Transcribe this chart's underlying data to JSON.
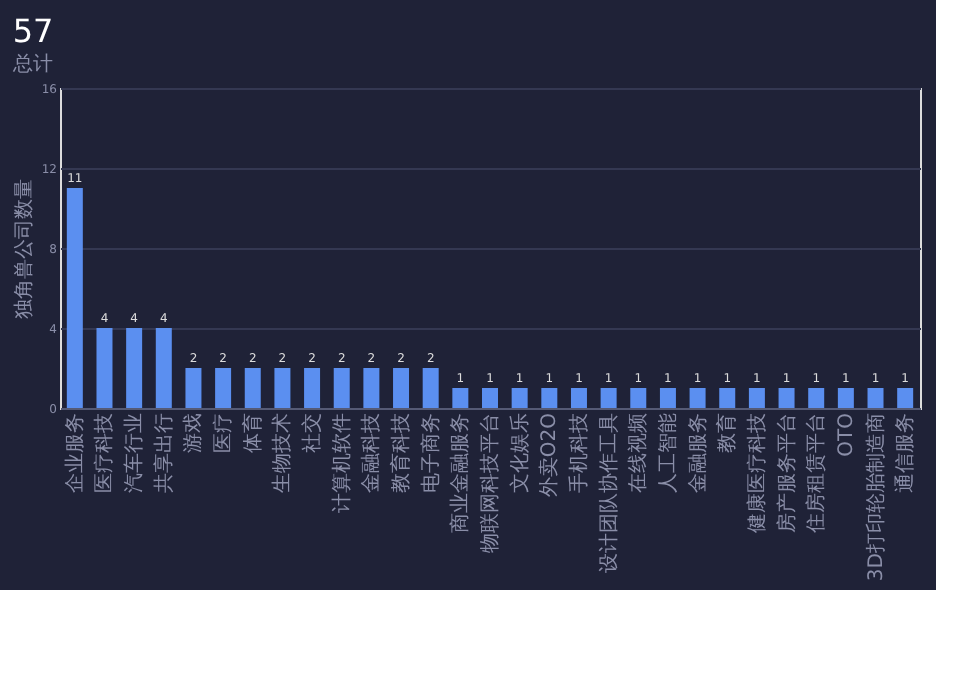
{
  "chart_data": {
    "type": "bar",
    "title": "57",
    "subtitle": "总计",
    "ylabel": "独角兽公司数量",
    "categories": [
      "企业服务",
      "医疗科技",
      "汽车行业",
      "共享出行",
      "游戏",
      "医疗",
      "体育",
      "生物技术",
      "社交",
      "计算机软件",
      "金融科技",
      "教育科技",
      "电子商务",
      "商业金融服务",
      "物联网科技平台",
      "文化娱乐",
      "外卖O2O",
      "手机科技",
      "设计团队协作工具",
      "在线视频",
      "人工智能",
      "金融服务",
      "教育",
      "健康医疗科技",
      "房产服务平台",
      "住房租赁平台",
      "OTO",
      "3D打印轮胎制造商",
      "通信服务"
    ],
    "values": [
      11,
      4,
      4,
      4,
      2,
      2,
      2,
      2,
      2,
      2,
      2,
      2,
      2,
      1,
      1,
      1,
      1,
      1,
      1,
      1,
      1,
      1,
      1,
      1,
      1,
      1,
      1,
      1,
      1
    ],
    "color": "#5b8ff0",
    "ylim": [
      0,
      16
    ],
    "yticks": [
      0,
      4,
      8,
      12,
      16
    ],
    "grid": "y",
    "data_labels": true
  }
}
